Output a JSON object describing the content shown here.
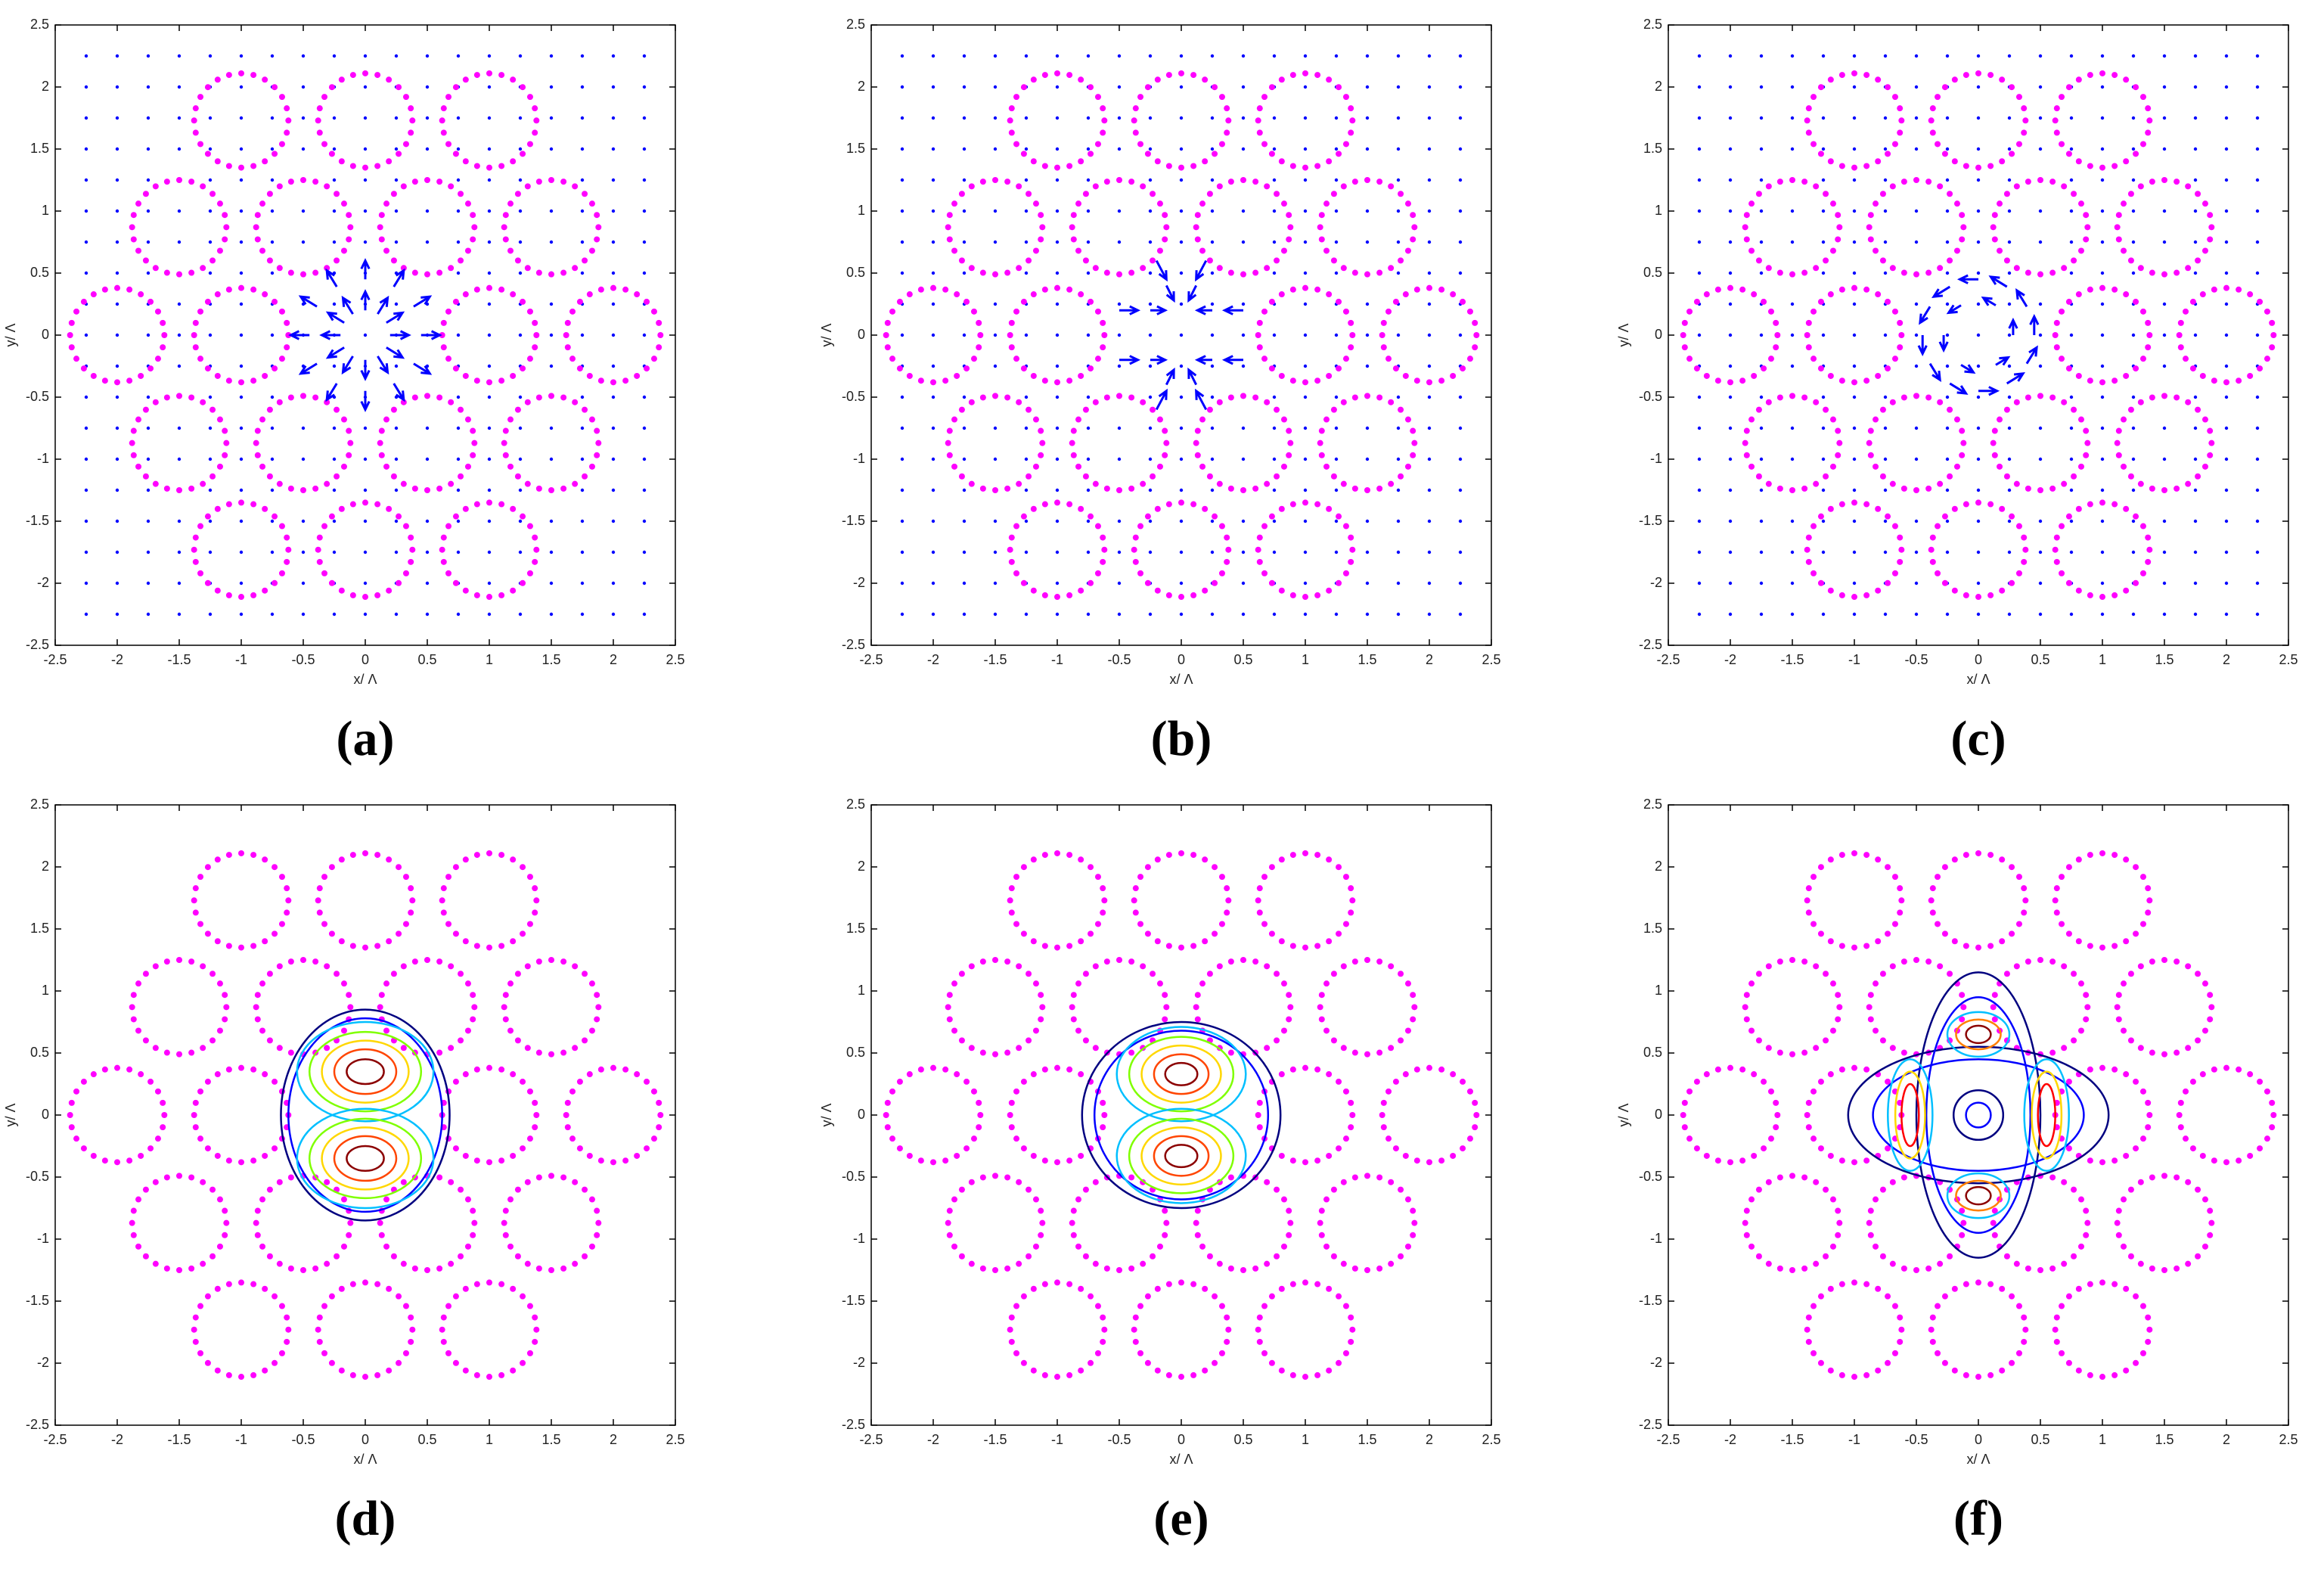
{
  "chart_data": [
    {
      "type": "quiver",
      "label": "(a)",
      "xlabel": "x/ Λ",
      "ylabel": "y/ Λ",
      "xlim": [
        -2.5,
        2.5
      ],
      "ylim": [
        -2.5,
        2.5
      ],
      "xticks": [
        -2.5,
        -2,
        -1.5,
        -1,
        -0.5,
        0,
        0.5,
        1,
        1.5,
        2,
        2.5
      ],
      "yticks": [
        -2.5,
        -2,
        -1.5,
        -1,
        -0.5,
        0,
        0.5,
        1,
        1.5,
        2,
        2.5
      ],
      "holes": {
        "x": [
          -1,
          0,
          1,
          -1.5,
          -0.5,
          0.5,
          1.5,
          -2,
          -1,
          1,
          2,
          -1.5,
          -0.5,
          0.5,
          1.5,
          -1,
          0,
          1
        ],
        "y": [
          1.73,
          1.73,
          1.73,
          0.87,
          0.87,
          0.87,
          0.87,
          0,
          0,
          0,
          0,
          -0.87,
          -0.87,
          -0.87,
          -0.87,
          -1.73,
          -1.73,
          -1.73
        ],
        "radius": 0.38,
        "color": "#ff00ff"
      },
      "field_points": {
        "x": [
          -2.25,
          -2,
          -1.75,
          -1.5,
          -1.25,
          -1,
          -0.75,
          -0.5,
          -0.25,
          0,
          0.25,
          0.5,
          0.75,
          1,
          1.25,
          1.5,
          1.75,
          2,
          2.25
        ],
        "y": [
          -2.25,
          -2,
          -1.75,
          -1.5,
          -1.25,
          -1,
          -0.75,
          -0.5,
          -0.25,
          0,
          0.25,
          0.5,
          0.75,
          1,
          1.25,
          1.5,
          1.75,
          2,
          2.25
        ],
        "color": "#0000ff"
      },
      "arrows": {
        "color": "#0000ff",
        "x": [
          0.45,
          0.39,
          0.23,
          0,
          -0.23,
          -0.39,
          -0.45,
          -0.39,
          -0.23,
          0,
          0.23,
          0.39,
          0.2,
          0.17,
          0.1,
          0,
          -0.1,
          -0.17,
          -0.2,
          -0.17,
          -0.1,
          0,
          0.1,
          0.17
        ],
        "y": [
          0,
          0.23,
          0.39,
          0.45,
          0.39,
          0.23,
          0,
          -0.23,
          -0.39,
          -0.45,
          -0.39,
          -0.23,
          0,
          0.1,
          0.17,
          0.2,
          0.17,
          0.1,
          0,
          -0.1,
          -0.17,
          -0.2,
          -0.17,
          -0.1
        ],
        "u": [
          0.15,
          0.13,
          0.08,
          0,
          -0.08,
          -0.13,
          -0.15,
          -0.13,
          -0.08,
          0,
          0.08,
          0.13,
          0.15,
          0.13,
          0.08,
          0,
          -0.08,
          -0.13,
          -0.15,
          -0.13,
          -0.08,
          0,
          0.08,
          0.13
        ],
        "v": [
          0,
          0.08,
          0.13,
          0.15,
          0.13,
          0.08,
          0,
          -0.08,
          -0.13,
          -0.15,
          -0.13,
          -0.08,
          0,
          0.08,
          0.13,
          0.15,
          0.13,
          0.08,
          0,
          -0.08,
          -0.13,
          -0.15,
          -0.13,
          -0.08
        ]
      }
    },
    {
      "type": "quiver",
      "label": "(b)",
      "xlabel": "x/ Λ",
      "ylabel": "y/ Λ",
      "xlim": [
        -2.5,
        2.5
      ],
      "ylim": [
        -2.5,
        2.5
      ],
      "xticks": [
        -2.5,
        -2,
        -1.5,
        -1,
        -0.5,
        0,
        0.5,
        1,
        1.5,
        2,
        2.5
      ],
      "yticks": [
        -2.5,
        -2,
        -1.5,
        -1,
        -0.5,
        0,
        0.5,
        1,
        1.5,
        2,
        2.5
      ],
      "holes": {
        "x": [
          -1,
          0,
          1,
          -1.5,
          -0.5,
          0.5,
          1.5,
          -2,
          -1,
          1,
          2,
          -1.5,
          -0.5,
          0.5,
          1.5,
          -1,
          0,
          1
        ],
        "y": [
          1.73,
          1.73,
          1.73,
          0.87,
          0.87,
          0.87,
          0.87,
          0,
          0,
          0,
          0,
          -0.87,
          -0.87,
          -0.87,
          -0.87,
          -1.73,
          -1.73,
          -1.73
        ],
        "radius": 0.38,
        "color": "#ff00ff"
      },
      "field_points": {
        "x": [
          -2.25,
          -2,
          -1.75,
          -1.5,
          -1.25,
          -1,
          -0.75,
          -0.5,
          -0.25,
          0,
          0.25,
          0.5,
          0.75,
          1,
          1.25,
          1.5,
          1.75,
          2,
          2.25
        ],
        "y": [
          -2.25,
          -2,
          -1.75,
          -1.5,
          -1.25,
          -1,
          -0.75,
          -0.5,
          -0.25,
          0,
          0.25,
          0.5,
          0.75,
          1,
          1.25,
          1.5,
          1.75,
          2,
          2.25
        ],
        "color": "#0000ff"
      },
      "arrows": {
        "color": "#0000ff",
        "x": [
          -0.5,
          -0.25,
          0.25,
          0.5,
          -0.5,
          -0.25,
          0.25,
          0.5,
          -0.12,
          0.12,
          -0.2,
          0.2,
          -0.12,
          0.12,
          -0.2,
          0.2
        ],
        "y": [
          0.2,
          0.2,
          0.2,
          0.2,
          -0.2,
          -0.2,
          -0.2,
          -0.2,
          0.4,
          0.4,
          0.6,
          0.6,
          -0.4,
          -0.4,
          -0.6,
          -0.6
        ],
        "u": [
          0.15,
          0.12,
          -0.12,
          -0.15,
          0.15,
          0.12,
          -0.12,
          -0.15,
          0.06,
          -0.06,
          0.08,
          -0.08,
          0.06,
          -0.06,
          0.08,
          -0.08
        ],
        "v": [
          0,
          0,
          0,
          0,
          0,
          0,
          0,
          0,
          -0.12,
          -0.12,
          -0.15,
          -0.15,
          0.12,
          0.12,
          0.15,
          0.15
        ]
      }
    },
    {
      "type": "quiver",
      "label": "(c)",
      "xlabel": "x/ Λ",
      "ylabel": "y/ Λ",
      "xlim": [
        -2.5,
        2.5
      ],
      "ylim": [
        -2.5,
        2.5
      ],
      "xticks": [
        -2.5,
        -2,
        -1.5,
        -1,
        -0.5,
        0,
        0.5,
        1,
        1.5,
        2,
        2.5
      ],
      "yticks": [
        -2.5,
        -2,
        -1.5,
        -1,
        -0.5,
        0,
        0.5,
        1,
        1.5,
        2,
        2.5
      ],
      "holes": {
        "x": [
          -1,
          0,
          1,
          -1.5,
          -0.5,
          0.5,
          1.5,
          -2,
          -1,
          1,
          2,
          -1.5,
          -0.5,
          0.5,
          1.5,
          -1,
          0,
          1
        ],
        "y": [
          1.73,
          1.73,
          1.73,
          0.87,
          0.87,
          0.87,
          0.87,
          0,
          0,
          0,
          0,
          -0.87,
          -0.87,
          -0.87,
          -0.87,
          -1.73,
          -1.73,
          -1.73
        ],
        "radius": 0.38,
        "color": "#ff00ff"
      },
      "field_points": {
        "x": [
          -2.25,
          -2,
          -1.75,
          -1.5,
          -1.25,
          -1,
          -0.75,
          -0.5,
          -0.25,
          0,
          0.25,
          0.5,
          0.75,
          1,
          1.25,
          1.5,
          1.75,
          2,
          2.25
        ],
        "y": [
          -2.25,
          -2,
          -1.75,
          -1.5,
          -1.25,
          -1,
          -0.75,
          -0.5,
          -0.25,
          0,
          0.25,
          0.5,
          0.75,
          1,
          1.25,
          1.5,
          1.75,
          2,
          2.25
        ],
        "color": "#0000ff"
      },
      "arrows": {
        "color": "#0000ff",
        "x": [
          0.45,
          0.39,
          0.23,
          0,
          -0.23,
          -0.39,
          -0.45,
          -0.39,
          -0.23,
          0,
          0.23,
          0.39,
          0.28,
          0.14,
          -0.14,
          -0.28,
          -0.14,
          0.14
        ],
        "y": [
          0,
          0.23,
          0.39,
          0.45,
          0.39,
          0.23,
          0,
          -0.23,
          -0.39,
          -0.45,
          -0.39,
          -0.23,
          0,
          0.24,
          0.24,
          0,
          -0.24,
          -0.24
        ],
        "u": [
          0,
          -0.08,
          -0.13,
          -0.15,
          -0.13,
          -0.08,
          0,
          0.08,
          0.13,
          0.15,
          0.13,
          0.08,
          0,
          -0.1,
          -0.1,
          0,
          0.1,
          0.1
        ],
        "v": [
          0.15,
          0.13,
          0.08,
          0,
          -0.08,
          -0.13,
          -0.15,
          -0.13,
          -0.08,
          0,
          0.08,
          0.13,
          0.12,
          0.06,
          -0.06,
          -0.12,
          -0.06,
          0.06
        ]
      }
    },
    {
      "type": "contour",
      "label": "(d)",
      "xlabel": "x/ Λ",
      "ylabel": "y/ Λ",
      "xlim": [
        -2.5,
        2.5
      ],
      "ylim": [
        -2.5,
        2.5
      ],
      "xticks": [
        -2.5,
        -2,
        -1.5,
        -1,
        -0.5,
        0,
        0.5,
        1,
        1.5,
        2,
        2.5
      ],
      "yticks": [
        -2.5,
        -2,
        -1.5,
        -1,
        -0.5,
        0,
        0.5,
        1,
        1.5,
        2,
        2.5
      ],
      "holes": {
        "x": [
          -1,
          0,
          1,
          -1.5,
          -0.5,
          0.5,
          1.5,
          -2,
          -1,
          1,
          2,
          -1.5,
          -0.5,
          0.5,
          1.5,
          -1,
          0,
          1
        ],
        "y": [
          1.73,
          1.73,
          1.73,
          0.87,
          0.87,
          0.87,
          0.87,
          0,
          0,
          0,
          0,
          -0.87,
          -0.87,
          -0.87,
          -0.87,
          -1.73,
          -1.73,
          -1.73
        ],
        "radius": 0.38,
        "color": "#ff00ff"
      },
      "contours": {
        "x": [
          0,
          0,
          0,
          0,
          0,
          0,
          0,
          0,
          0,
          0,
          0,
          0
        ],
        "y": [
          0,
          0,
          0.35,
          0.35,
          0.35,
          0.35,
          0.35,
          -0.35,
          -0.35,
          -0.35,
          -0.35,
          -0.35
        ],
        "rx": [
          0.68,
          0.62,
          0.55,
          0.45,
          0.35,
          0.25,
          0.15,
          0.55,
          0.45,
          0.35,
          0.25,
          0.15
        ],
        "ry": [
          0.85,
          0.78,
          0.4,
          0.32,
          0.25,
          0.18,
          0.1,
          0.4,
          0.32,
          0.25,
          0.18,
          0.1
        ],
        "colors": [
          "#000080",
          "#0000ff",
          "#00bfff",
          "#7fff00",
          "#ffd700",
          "#ff4500",
          "#8b0000",
          "#00bfff",
          "#7fff00",
          "#ffd700",
          "#ff4500",
          "#8b0000"
        ]
      }
    },
    {
      "type": "contour",
      "label": "(e)",
      "xlabel": "x/ Λ",
      "ylabel": "y/ Λ",
      "xlim": [
        -2.5,
        2.5
      ],
      "ylim": [
        -2.5,
        2.5
      ],
      "xticks": [
        -2.5,
        -2,
        -1.5,
        -1,
        -0.5,
        0,
        0.5,
        1,
        1.5,
        2,
        2.5
      ],
      "yticks": [
        -2.5,
        -2,
        -1.5,
        -1,
        -0.5,
        0,
        0.5,
        1,
        1.5,
        2,
        2.5
      ],
      "holes": {
        "x": [
          -1,
          0,
          1,
          -1.5,
          -0.5,
          0.5,
          1.5,
          -2,
          -1,
          1,
          2,
          -1.5,
          -0.5,
          0.5,
          1.5,
          -1,
          0,
          1
        ],
        "y": [
          1.73,
          1.73,
          1.73,
          0.87,
          0.87,
          0.87,
          0.87,
          0,
          0,
          0,
          0,
          -0.87,
          -0.87,
          -0.87,
          -0.87,
          -1.73,
          -1.73,
          -1.73
        ],
        "radius": 0.38,
        "color": "#ff00ff"
      },
      "contours": {
        "x": [
          0,
          0,
          0,
          0,
          0,
          0,
          0,
          0,
          0,
          0,
          0,
          0
        ],
        "y": [
          0,
          0,
          0.33,
          0.33,
          0.33,
          0.33,
          0.33,
          -0.33,
          -0.33,
          -0.33,
          -0.33,
          -0.33
        ],
        "rx": [
          0.8,
          0.7,
          0.52,
          0.42,
          0.32,
          0.22,
          0.13,
          0.52,
          0.42,
          0.32,
          0.22,
          0.13
        ],
        "ry": [
          0.75,
          0.68,
          0.38,
          0.3,
          0.23,
          0.16,
          0.09,
          0.38,
          0.3,
          0.23,
          0.16,
          0.09
        ],
        "colors": [
          "#000080",
          "#0000ff",
          "#00bfff",
          "#7fff00",
          "#ffd700",
          "#ff4500",
          "#8b0000",
          "#00bfff",
          "#7fff00",
          "#ffd700",
          "#ff4500",
          "#8b0000"
        ]
      }
    },
    {
      "type": "contour",
      "label": "(f)",
      "xlabel": "x/ Λ",
      "ylabel": "y/ Λ",
      "xlim": [
        -2.5,
        2.5
      ],
      "ylim": [
        -2.5,
        2.5
      ],
      "xticks": [
        -2.5,
        -2,
        -1.5,
        -1,
        -0.5,
        0,
        0.5,
        1,
        1.5,
        2,
        2.5
      ],
      "yticks": [
        -2.5,
        -2,
        -1.5,
        -1,
        -0.5,
        0,
        0.5,
        1,
        1.5,
        2,
        2.5
      ],
      "holes": {
        "x": [
          -1,
          0,
          1,
          -1.5,
          -0.5,
          0.5,
          1.5,
          -2,
          -1,
          1,
          2,
          -1.5,
          -0.5,
          0.5,
          1.5,
          -1,
          0,
          1
        ],
        "y": [
          1.73,
          1.73,
          1.73,
          0.87,
          0.87,
          0.87,
          0.87,
          0,
          0,
          0,
          0,
          -0.87,
          -0.87,
          -0.87,
          -0.87,
          -1.73,
          -1.73,
          -1.73
        ],
        "radius": 0.38,
        "color": "#ff00ff"
      },
      "contours": {
        "x": [
          0,
          0,
          0,
          0,
          -0.55,
          -0.55,
          -0.55,
          0.55,
          0.55,
          0.55,
          0,
          0,
          0,
          0,
          0,
          0,
          0,
          0
        ],
        "y": [
          0,
          0,
          0,
          0,
          0,
          0,
          0,
          0,
          0,
          0,
          0.65,
          0.65,
          0.65,
          -0.65,
          -0.65,
          -0.65,
          0,
          0
        ],
        "rx": [
          1.05,
          0.5,
          0.85,
          0.42,
          0.18,
          0.12,
          0.07,
          0.18,
          0.12,
          0.07,
          0.25,
          0.18,
          0.1,
          0.25,
          0.18,
          0.1,
          0.2,
          0.1
        ],
        "ry": [
          0.55,
          1.15,
          0.45,
          0.95,
          0.45,
          0.35,
          0.25,
          0.45,
          0.35,
          0.25,
          0.18,
          0.12,
          0.07,
          0.18,
          0.12,
          0.07,
          0.2,
          0.1
        ],
        "colors": [
          "#000080",
          "#000080",
          "#0000ff",
          "#0000ff",
          "#00bfff",
          "#ffd700",
          "#ff0000",
          "#00bfff",
          "#ffd700",
          "#ff0000",
          "#00bfff",
          "#ff7f00",
          "#8b0000",
          "#00bfff",
          "#ff7f00",
          "#8b0000",
          "#000080",
          "#0000ff"
        ]
      }
    }
  ]
}
